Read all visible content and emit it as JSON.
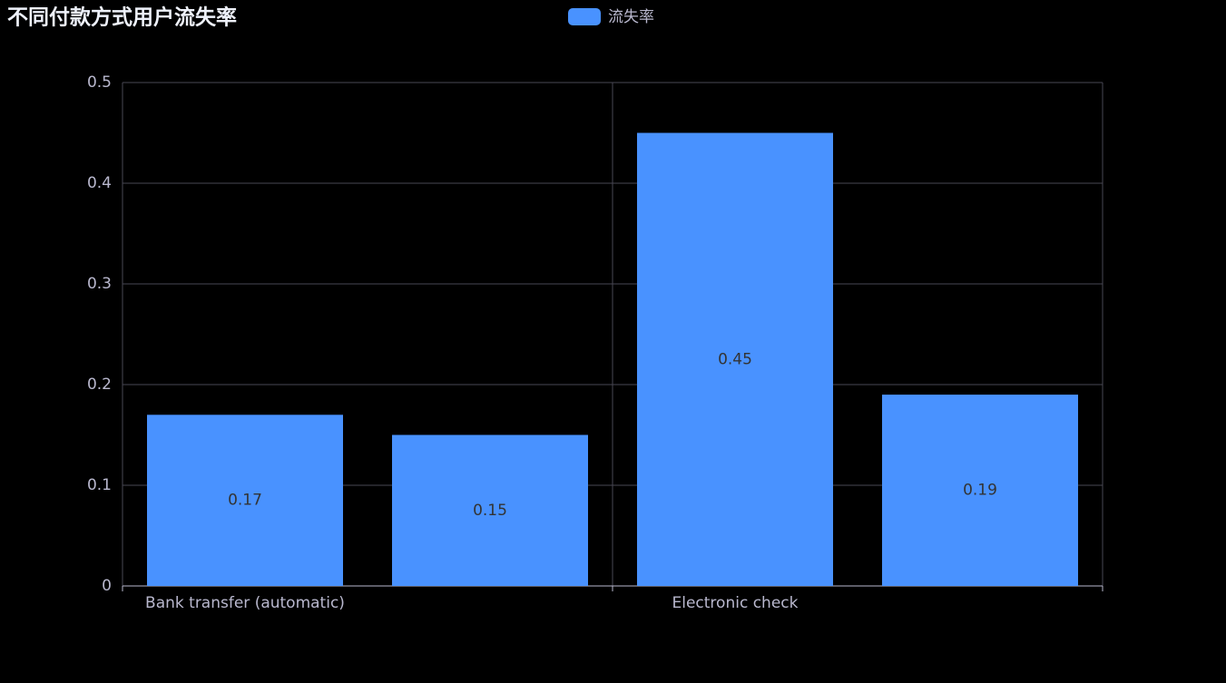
{
  "chart_data": {
    "type": "bar",
    "title": "不同付款方式用户流失率",
    "categories": [
      "Bank transfer (automatic)",
      null,
      "Electronic check",
      null
    ],
    "series": [
      {
        "name": "流失率",
        "color": "#4992ff",
        "values": [
          0.17,
          0.15,
          0.45,
          0.19
        ]
      }
    ],
    "ylim": [
      0,
      0.5
    ],
    "yticks": [
      0,
      0.1,
      0.2,
      0.3,
      0.4,
      0.5
    ],
    "grid": true,
    "legend": "top"
  }
}
